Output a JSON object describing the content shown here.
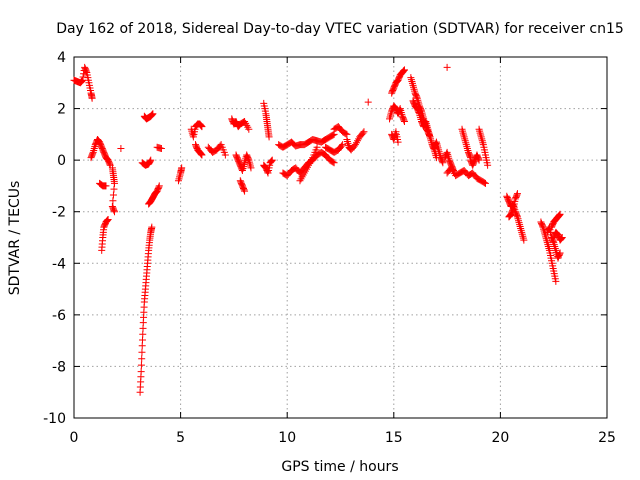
{
  "chart_data": {
    "type": "scatter",
    "title": "Day 162 of 2018, Sidereal Day-to-day VTEC variation (SDTVAR) for receiver cn15",
    "xlabel": "GPS time / hours",
    "ylabel": "SDTVAR / TECUs",
    "xlim": [
      0,
      25
    ],
    "ylim": [
      -10,
      4
    ],
    "xticks": [
      0,
      5,
      10,
      15,
      20,
      25
    ],
    "yticks": [
      -10,
      -8,
      -6,
      -4,
      -2,
      0,
      2,
      4
    ],
    "grid": true,
    "marker": "+",
    "color": "#ff0000",
    "series": [
      {
        "name": "SDTVAR",
        "segments": [
          [
            [
              0.0,
              3.1
            ],
            [
              0.15,
              3.05
            ],
            [
              0.3,
              3.0
            ],
            [
              0.4,
              3.1
            ],
            [
              0.5,
              3.6
            ],
            [
              0.6,
              3.4
            ],
            [
              0.7,
              3.0
            ],
            [
              0.8,
              2.6
            ],
            [
              0.85,
              2.4
            ]
          ],
          [
            [
              0.8,
              0.1
            ],
            [
              0.9,
              0.3
            ],
            [
              1.0,
              0.6
            ],
            [
              1.1,
              0.8
            ],
            [
              1.2,
              0.7
            ],
            [
              1.3,
              0.5
            ],
            [
              1.4,
              0.3
            ],
            [
              1.5,
              0.1
            ],
            [
              1.6,
              0.0
            ],
            [
              1.7,
              -0.2
            ]
          ],
          [
            [
              1.2,
              -0.9
            ],
            [
              1.35,
              -1.0
            ],
            [
              1.5,
              -1.0
            ]
          ],
          [
            [
              1.3,
              -3.5
            ],
            [
              1.35,
              -3.0
            ],
            [
              1.4,
              -2.6
            ],
            [
              1.5,
              -2.4
            ],
            [
              1.6,
              -2.3
            ]
          ],
          [
            [
              1.8,
              -0.3
            ],
            [
              1.85,
              -0.6
            ],
            [
              1.9,
              -0.9
            ],
            [
              1.8,
              -1.8
            ],
            [
              1.9,
              -2.0
            ]
          ],
          [
            [
              2.2,
              0.45
            ]
          ],
          [
            [
              3.1,
              -9.0
            ],
            [
              3.15,
              -8.2
            ],
            [
              3.2,
              -7.2
            ],
            [
              3.25,
              -6.3
            ],
            [
              3.3,
              -5.5
            ],
            [
              3.35,
              -5.0
            ],
            [
              3.4,
              -4.5
            ],
            [
              3.45,
              -4.0
            ],
            [
              3.5,
              -3.5
            ],
            [
              3.55,
              -3.1
            ],
            [
              3.6,
              -2.8
            ],
            [
              3.65,
              -2.6
            ]
          ],
          [
            [
              3.3,
              1.7
            ],
            [
              3.4,
              1.6
            ],
            [
              3.5,
              1.65
            ],
            [
              3.6,
              1.7
            ],
            [
              3.7,
              1.8
            ]
          ],
          [
            [
              3.2,
              -0.1
            ],
            [
              3.35,
              -0.2
            ],
            [
              3.5,
              -0.15
            ],
            [
              3.6,
              0.0
            ]
          ],
          [
            [
              3.5,
              -1.7
            ],
            [
              3.6,
              -1.6
            ],
            [
              3.7,
              -1.45
            ],
            [
              3.8,
              -1.3
            ],
            [
              3.9,
              -1.2
            ],
            [
              4.0,
              -1.0
            ]
          ],
          [
            [
              3.9,
              0.5
            ],
            [
              4.1,
              0.45
            ]
          ],
          [
            [
              4.9,
              -0.8
            ],
            [
              5.0,
              -0.5
            ],
            [
              5.05,
              -0.3
            ]
          ],
          [
            [
              5.5,
              1.2
            ],
            [
              5.6,
              0.9
            ],
            [
              5.7,
              1.3
            ],
            [
              5.8,
              1.4
            ],
            [
              5.9,
              1.4
            ],
            [
              6.0,
              1.3
            ]
          ],
          [
            [
              5.7,
              0.6
            ],
            [
              5.8,
              0.4
            ],
            [
              5.9,
              0.3
            ],
            [
              6.0,
              0.2
            ]
          ],
          [
            [
              6.3,
              0.5
            ],
            [
              6.5,
              0.3
            ],
            [
              6.7,
              0.4
            ],
            [
              6.9,
              0.6
            ],
            [
              7.1,
              0.2
            ]
          ],
          [
            [
              7.4,
              1.6
            ],
            [
              7.5,
              1.4
            ],
            [
              7.6,
              1.5
            ],
            [
              7.7,
              1.3
            ],
            [
              7.8,
              1.4
            ],
            [
              8.0,
              1.5
            ],
            [
              8.2,
              1.2
            ]
          ],
          [
            [
              7.6,
              0.2
            ],
            [
              7.7,
              0.0
            ],
            [
              7.8,
              -0.2
            ],
            [
              7.9,
              -0.4
            ],
            [
              8.0,
              -0.1
            ],
            [
              8.1,
              0.2
            ],
            [
              8.2,
              0.0
            ],
            [
              8.3,
              -0.3
            ]
          ],
          [
            [
              7.8,
              -0.8
            ],
            [
              7.9,
              -1.0
            ],
            [
              8.0,
              -1.2
            ]
          ],
          [
            [
              8.9,
              2.2
            ],
            [
              9.0,
              1.8
            ],
            [
              9.05,
              1.5
            ],
            [
              9.1,
              1.2
            ],
            [
              9.15,
              0.9
            ]
          ],
          [
            [
              8.9,
              -0.2
            ],
            [
              9.0,
              -0.3
            ],
            [
              9.1,
              -0.5
            ],
            [
              9.2,
              -0.1
            ],
            [
              9.3,
              0.0
            ]
          ],
          [
            [
              9.6,
              0.6
            ],
            [
              9.8,
              0.5
            ],
            [
              10.0,
              0.6
            ],
            [
              10.2,
              0.7
            ],
            [
              10.4,
              0.55
            ],
            [
              10.6,
              0.6
            ],
            [
              10.8,
              0.6
            ],
            [
              11.0,
              0.7
            ],
            [
              11.2,
              0.8
            ],
            [
              11.4,
              0.75
            ],
            [
              11.6,
              0.7
            ],
            [
              11.8,
              0.8
            ],
            [
              12.0,
              0.9
            ],
            [
              12.2,
              1.0
            ]
          ],
          [
            [
              9.8,
              -0.5
            ],
            [
              10.0,
              -0.6
            ],
            [
              10.2,
              -0.4
            ],
            [
              10.4,
              -0.3
            ],
            [
              10.6,
              -0.5
            ],
            [
              10.8,
              -0.3
            ],
            [
              11.0,
              -0.1
            ],
            [
              11.2,
              0.0
            ],
            [
              11.4,
              0.2
            ],
            [
              11.6,
              0.3
            ],
            [
              11.8,
              0.2
            ],
            [
              12.0,
              0.0
            ],
            [
              12.2,
              -0.1
            ]
          ],
          [
            [
              10.6,
              -0.8
            ],
            [
              10.8,
              -0.5
            ],
            [
              11.0,
              -0.2
            ],
            [
              11.2,
              0.1
            ],
            [
              11.4,
              0.5
            ]
          ],
          [
            [
              11.8,
              0.5
            ],
            [
              12.0,
              0.4
            ],
            [
              12.2,
              0.3
            ],
            [
              12.4,
              0.4
            ],
            [
              12.6,
              0.6
            ]
          ],
          [
            [
              12.2,
              1.2
            ],
            [
              12.4,
              1.3
            ],
            [
              12.6,
              1.1
            ],
            [
              12.8,
              1.0
            ]
          ],
          [
            [
              12.8,
              0.8
            ],
            [
              12.9,
              0.5
            ],
            [
              13.0,
              0.4
            ],
            [
              13.2,
              0.6
            ],
            [
              13.4,
              0.9
            ],
            [
              13.6,
              1.1
            ]
          ],
          [
            [
              13.8,
              2.25
            ]
          ],
          [
            [
              14.8,
              1.6
            ],
            [
              14.9,
              1.9
            ],
            [
              15.0,
              2.1
            ],
            [
              15.1,
              2.0
            ],
            [
              15.2,
              1.8
            ],
            [
              15.3,
              2.0
            ],
            [
              15.4,
              1.7
            ],
            [
              15.5,
              1.5
            ]
          ],
          [
            [
              14.9,
              1.0
            ],
            [
              15.0,
              0.8
            ],
            [
              15.1,
              1.1
            ],
            [
              15.2,
              0.7
            ]
          ],
          [
            [
              14.9,
              2.6
            ],
            [
              15.0,
              2.8
            ],
            [
              15.1,
              3.0
            ],
            [
              15.2,
              3.1
            ],
            [
              15.3,
              3.3
            ],
            [
              15.4,
              3.4
            ],
            [
              15.5,
              3.5
            ]
          ],
          [
            [
              15.8,
              3.2
            ],
            [
              15.9,
              2.9
            ],
            [
              16.0,
              2.6
            ],
            [
              16.1,
              2.4
            ],
            [
              16.2,
              2.1
            ],
            [
              16.3,
              1.9
            ],
            [
              16.4,
              1.6
            ],
            [
              16.5,
              1.3
            ],
            [
              16.6,
              1.1
            ],
            [
              16.7,
              0.9
            ],
            [
              16.8,
              0.6
            ],
            [
              16.9,
              0.4
            ],
            [
              17.0,
              0.1
            ]
          ],
          [
            [
              15.9,
              2.3
            ],
            [
              16.0,
              2.1
            ],
            [
              16.1,
              2.0
            ],
            [
              16.2,
              1.8
            ],
            [
              16.3,
              1.5
            ],
            [
              16.4,
              1.3
            ],
            [
              16.5,
              1.5
            ],
            [
              16.6,
              1.2
            ],
            [
              16.7,
              0.9
            ]
          ],
          [
            [
              16.9,
              0.5
            ],
            [
              17.0,
              0.7
            ],
            [
              17.1,
              0.4
            ],
            [
              17.2,
              0.1
            ],
            [
              17.3,
              -0.1
            ]
          ],
          [
            [
              17.5,
              3.6
            ]
          ],
          [
            [
              17.4,
              0.1
            ],
            [
              17.5,
              0.3
            ],
            [
              17.6,
              0.0
            ],
            [
              17.7,
              -0.2
            ],
            [
              17.8,
              -0.4
            ]
          ],
          [
            [
              17.5,
              -0.5
            ],
            [
              17.7,
              -0.3
            ],
            [
              17.9,
              -0.6
            ],
            [
              18.1,
              -0.5
            ],
            [
              18.3,
              -0.4
            ],
            [
              18.5,
              -0.6
            ],
            [
              18.7,
              -0.5
            ],
            [
              18.9,
              -0.7
            ],
            [
              19.1,
              -0.8
            ],
            [
              19.3,
              -0.9
            ]
          ],
          [
            [
              18.2,
              1.2
            ],
            [
              18.3,
              0.9
            ],
            [
              18.4,
              0.6
            ],
            [
              18.5,
              0.3
            ],
            [
              18.6,
              0.1
            ]
          ],
          [
            [
              18.6,
              0.0
            ],
            [
              18.7,
              -0.2
            ],
            [
              18.8,
              0.0
            ],
            [
              18.9,
              0.2
            ],
            [
              19.0,
              0.0
            ]
          ],
          [
            [
              19.0,
              1.2
            ],
            [
              19.1,
              0.9
            ],
            [
              19.2,
              0.6
            ],
            [
              19.3,
              0.2
            ],
            [
              19.4,
              -0.2
            ]
          ],
          [
            [
              20.3,
              -1.4
            ],
            [
              20.4,
              -1.6
            ],
            [
              20.5,
              -1.8
            ],
            [
              20.6,
              -1.7
            ],
            [
              20.7,
              -2.0
            ],
            [
              20.8,
              -2.2
            ],
            [
              20.9,
              -2.5
            ],
            [
              21.0,
              -2.8
            ],
            [
              21.1,
              -3.1
            ]
          ],
          [
            [
              20.4,
              -2.2
            ],
            [
              20.5,
              -2.1
            ],
            [
              20.6,
              -1.9
            ],
            [
              20.7,
              -1.5
            ],
            [
              20.8,
              -1.3
            ]
          ],
          [
            [
              21.9,
              -2.4
            ],
            [
              22.0,
              -2.6
            ],
            [
              22.1,
              -2.9
            ],
            [
              22.2,
              -3.2
            ],
            [
              22.3,
              -3.5
            ],
            [
              22.4,
              -3.9
            ],
            [
              22.5,
              -4.3
            ],
            [
              22.6,
              -4.7
            ]
          ],
          [
            [
              22.2,
              -2.8
            ],
            [
              22.3,
              -2.6
            ],
            [
              22.4,
              -3.0
            ],
            [
              22.5,
              -3.2
            ],
            [
              22.6,
              -3.5
            ],
            [
              22.7,
              -3.8
            ],
            [
              22.8,
              -3.6
            ]
          ],
          [
            [
              22.4,
              -2.6
            ],
            [
              22.5,
              -2.4
            ],
            [
              22.6,
              -2.3
            ],
            [
              22.7,
              -2.2
            ],
            [
              22.8,
              -2.1
            ]
          ],
          [
            [
              22.5,
              -3.0
            ],
            [
              22.6,
              -2.8
            ],
            [
              22.7,
              -2.9
            ],
            [
              22.8,
              -3.1
            ],
            [
              22.9,
              -3.0
            ]
          ]
        ]
      }
    ]
  }
}
